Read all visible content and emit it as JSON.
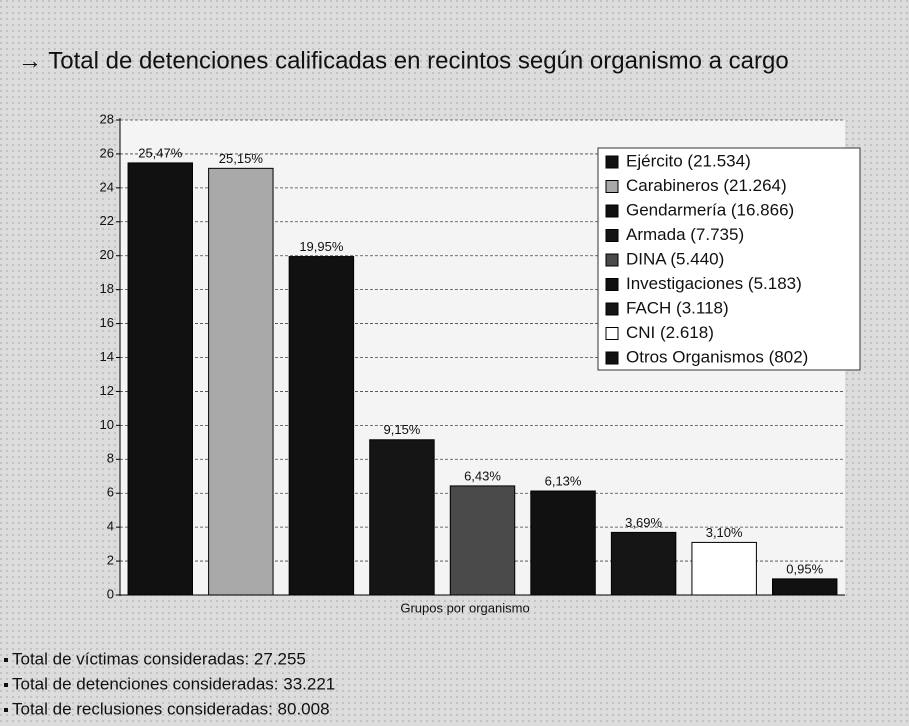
{
  "chart_data": {
    "type": "bar",
    "title": "→ Total de detenciones calificadas en recintos según organismo a cargo",
    "x_label": "Grupos por organismo",
    "categories": [
      "Ejército (21.534)",
      "Carabineros (21.264)",
      "Gendarmería (16.866)",
      "Armada (7.735)",
      "DINA (5.440)",
      "Investigaciones (5.183)",
      "FACH (3.118)",
      "CNI (2.618)",
      "Otros Organismos (802)"
    ],
    "values": [
      25.47,
      25.15,
      19.95,
      9.15,
      6.43,
      6.13,
      3.69,
      3.1,
      0.95
    ],
    "value_labels": [
      "25,47%",
      "25,15%",
      "19,95%",
      "9,15%",
      "6,43%",
      "6,13%",
      "3,69%",
      "3,10%",
      "0,95%"
    ],
    "colors": [
      "#111111",
      "#a9a9a9",
      "#111111",
      "#151515",
      "#4a4a4a",
      "#111111",
      "#151515",
      "#ffffff",
      "#111111"
    ],
    "ylim": [
      0,
      28
    ],
    "yticks": [
      0,
      2,
      4,
      6,
      8,
      10,
      12,
      14,
      16,
      18,
      20,
      22,
      24,
      26,
      28
    ],
    "grid": true,
    "legend": "upper right",
    "notes": [
      "Total de víctimas consideradas: 27.255",
      "Total de detenciones consideradas: 33.221",
      "Total de reclusiones consideradas: 80.008"
    ]
  }
}
